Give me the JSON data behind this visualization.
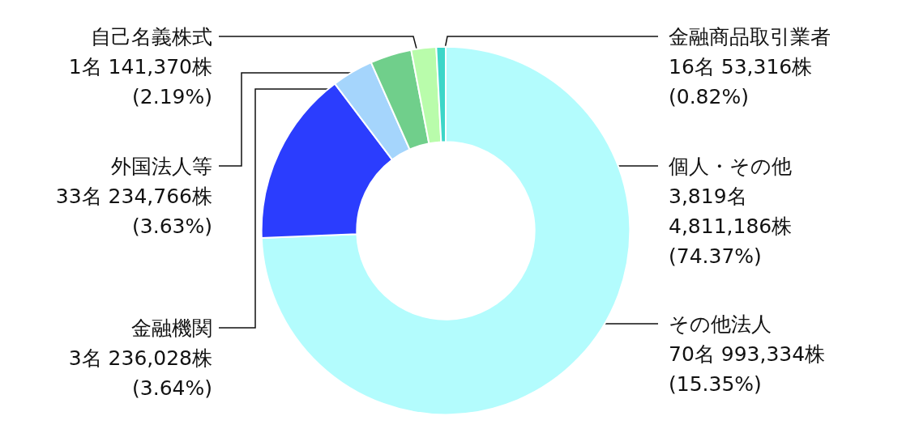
{
  "chart_data": {
    "type": "donut",
    "categories": [
      "個人・その他",
      "その他法人",
      "金融機関",
      "外国法人等",
      "自己名義株式",
      "金融商品取引業者"
    ],
    "values": [
      74.37,
      15.35,
      3.64,
      3.63,
      2.19,
      0.82
    ],
    "colors": [
      "#b3fcfd",
      "#2b3dfe",
      "#a5d5fc",
      "#70cf8b",
      "#b9fcab",
      "#3cd6c8"
    ],
    "value_labels": [
      "3,819名\n4,811,186株\n(74.37%)",
      "70名 993,334株\n(15.35%)",
      "3名 236,028株\n(3.64%)",
      "33名 234,766株\n(3.63%)",
      "1名 141,370株\n(2.19%)",
      "16名 53,316株\n(0.82%)"
    ],
    "legend": false
  }
}
